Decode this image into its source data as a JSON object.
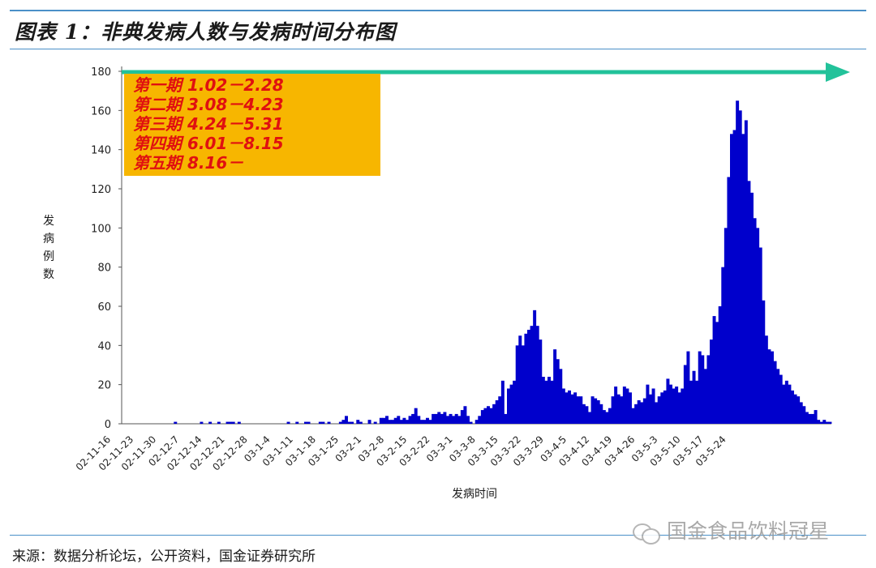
{
  "figure": {
    "title": "图表 1：非典发病人数与发病时间分布图",
    "source": "来源：数据分析论坛，公开资料，国金证券研究所",
    "watermark": "国金食品饮料冠星"
  },
  "chart_data": {
    "type": "bar",
    "title": "",
    "xlabel": "发病时间",
    "ylabel": "发病例数",
    "ylim": [
      0,
      180
    ],
    "yticks": [
      0,
      20,
      40,
      60,
      80,
      100,
      120,
      140,
      160,
      180
    ],
    "x_tick_labels": [
      "02-11-16",
      "02-11-23",
      "02-11-30",
      "02-12-7",
      "02-12-14",
      "02-12-21",
      "02-12-28",
      "03-1-4",
      "03-1-11",
      "03-1-18",
      "03-1-25",
      "03-2-1",
      "03-2-8",
      "03-2-15",
      "03-2-22",
      "03-3-1",
      "03-3-8",
      "03-3-15",
      "03-3-22",
      "03-3-29",
      "03-4-5",
      "03-4-12",
      "03-4-19",
      "03-4-26",
      "03-5-3",
      "03-5-10",
      "03-5-17",
      "03-5-24"
    ],
    "values": [
      0,
      0,
      0,
      0,
      0,
      0,
      0,
      0,
      0,
      0,
      0,
      0,
      0,
      0,
      0,
      0,
      0,
      0,
      1,
      0,
      0,
      0,
      0,
      0,
      0,
      0,
      0,
      1,
      0,
      0,
      1,
      0,
      0,
      1,
      0,
      0,
      1,
      1,
      1,
      0,
      1,
      0,
      0,
      0,
      0,
      0,
      0,
      0,
      0,
      0,
      0,
      0,
      0,
      0,
      0,
      0,
      0,
      1,
      0,
      0,
      1,
      0,
      0,
      1,
      1,
      0,
      0,
      0,
      1,
      1,
      0,
      1,
      0,
      0,
      0,
      1,
      2,
      4,
      1,
      1,
      0,
      2,
      1,
      0,
      0,
      2,
      0,
      1,
      0,
      3,
      3,
      4,
      2,
      2,
      3,
      4,
      2,
      3,
      2,
      4,
      5,
      8,
      4,
      2,
      2,
      3,
      2,
      5,
      5,
      6,
      5,
      6,
      4,
      5,
      4,
      5,
      4,
      7,
      9,
      4,
      1,
      0,
      2,
      4,
      7,
      8,
      9,
      8,
      10,
      12,
      14,
      22,
      5,
      18,
      20,
      22,
      40,
      45,
      40,
      46,
      48,
      50,
      58,
      50,
      43,
      24,
      22,
      24,
      22,
      38,
      33,
      28,
      18,
      16,
      17,
      15,
      16,
      14,
      14,
      10,
      9,
      6,
      14,
      13,
      12,
      10,
      7,
      6,
      8,
      14,
      19,
      15,
      14,
      19,
      18,
      16,
      8,
      10,
      12,
      11,
      13,
      20,
      15,
      18,
      11,
      14,
      16,
      17,
      23,
      20,
      18,
      19,
      16,
      18,
      30,
      37,
      22,
      27,
      22,
      37,
      35,
      28,
      35,
      43,
      55,
      52,
      60,
      80,
      100,
      126,
      148,
      150,
      165,
      160,
      148,
      155,
      124,
      118,
      105,
      100,
      90,
      63,
      45,
      38,
      37,
      32,
      28,
      25,
      20,
      22,
      20,
      17,
      15,
      14,
      11,
      9,
      6,
      5,
      5,
      7,
      2,
      1,
      2,
      1,
      1
    ],
    "color": "#0000cc",
    "annotation": {
      "lines": [
        "第一期  1.02－2.28",
        "第二期  3.08－4.23",
        "第三期  4.24－5.31",
        "第四期  6.01－8.15",
        "第五期  8.16－"
      ],
      "box_color": "#f7b600",
      "text_color": "#e01010",
      "arrow_color": "#22c29a"
    },
    "grid": false
  }
}
